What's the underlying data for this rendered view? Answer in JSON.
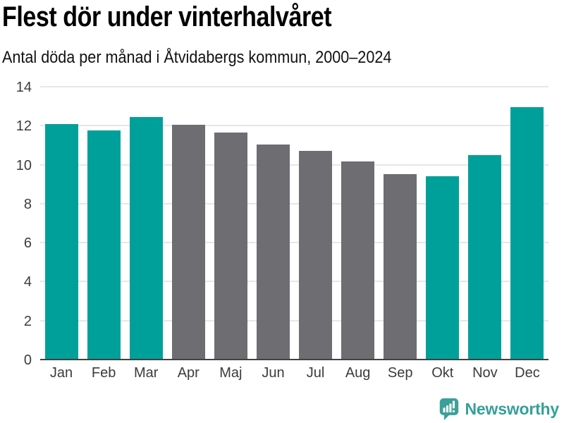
{
  "chart_data": {
    "type": "bar",
    "title": "Flest dör under vinterhalvåret",
    "subtitle": "Antal döda per månad i Åtvidabergs kommun, 2000–2024",
    "categories": [
      "Jan",
      "Feb",
      "Mar",
      "Apr",
      "Maj",
      "Jun",
      "Jul",
      "Aug",
      "Sep",
      "Okt",
      "Nov",
      "Dec"
    ],
    "values": [
      12.1,
      11.75,
      12.45,
      12.05,
      11.65,
      11.05,
      10.7,
      10.15,
      9.5,
      9.4,
      10.5,
      12.95
    ],
    "groups": [
      "winter",
      "winter",
      "winter",
      "summer",
      "summer",
      "summer",
      "summer",
      "summer",
      "summer",
      "winter",
      "winter",
      "winter"
    ],
    "palette": {
      "winter": "#00a09a",
      "summer": "#6d6d72"
    },
    "xlabel": "",
    "ylabel": "",
    "ylim": [
      0,
      14
    ],
    "yticks": [
      0,
      2,
      4,
      6,
      8,
      10,
      12,
      14
    ],
    "grid": "horizontal, behind bars",
    "legend": "none",
    "axis_color": "#424242",
    "gridline_color": "#e7e7e7",
    "tick_label_color": "#3c3c3c"
  },
  "branding": {
    "logo_text": "Newsworthy",
    "logo_color": "#35a09a"
  }
}
